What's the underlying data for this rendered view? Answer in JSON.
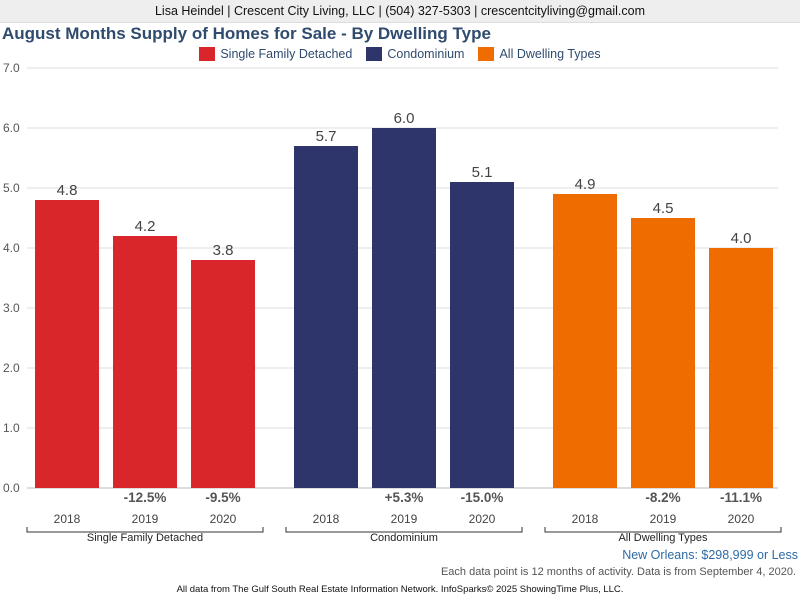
{
  "header": {
    "contact": "Lisa Heindel | Crescent City Living, LLC | (504) 327-5303 | crescentcityliving@gmail.com"
  },
  "chart_data": {
    "type": "bar",
    "title": "August Months Supply of Homes for Sale - By Dwelling Type",
    "ylim": [
      0,
      7
    ],
    "yticks": [
      "0.0",
      "1.0",
      "2.0",
      "3.0",
      "4.0",
      "5.0",
      "6.0",
      "7.0"
    ],
    "grid": true,
    "legend_placement": "top-center",
    "groups": [
      {
        "name": "Single Family Detached",
        "color": "#d9262a",
        "bars": [
          {
            "year": "2018",
            "value": 4.8,
            "label": "4.8",
            "change": ""
          },
          {
            "year": "2019",
            "value": 4.2,
            "label": "4.2",
            "change": "-12.5%"
          },
          {
            "year": "2020",
            "value": 3.8,
            "label": "3.8",
            "change": "-9.5%"
          }
        ]
      },
      {
        "name": "Condominium",
        "color": "#2e356a",
        "bars": [
          {
            "year": "2018",
            "value": 5.7,
            "label": "5.7",
            "change": ""
          },
          {
            "year": "2019",
            "value": 6.0,
            "label": "6.0",
            "change": "+5.3%"
          },
          {
            "year": "2020",
            "value": 5.1,
            "label": "5.1",
            "change": "-15.0%"
          }
        ]
      },
      {
        "name": "All Dwelling Types",
        "color": "#ef6c00",
        "bars": [
          {
            "year": "2018",
            "value": 4.9,
            "label": "4.9",
            "change": ""
          },
          {
            "year": "2019",
            "value": 4.5,
            "label": "4.5",
            "change": "-8.2%"
          },
          {
            "year": "2020",
            "value": 4.0,
            "label": "4.0",
            "change": "-11.1%"
          }
        ]
      }
    ]
  },
  "notes": {
    "location": "New Orleans: $298,999 or Less",
    "data_note": "Each data point is 12 months of activity. Data is from September 4, 2020."
  },
  "footer": {
    "source": "All data from The Gulf South Real Estate Information Network. InfoSparks© 2025 ShowingTime Plus, LLC."
  }
}
